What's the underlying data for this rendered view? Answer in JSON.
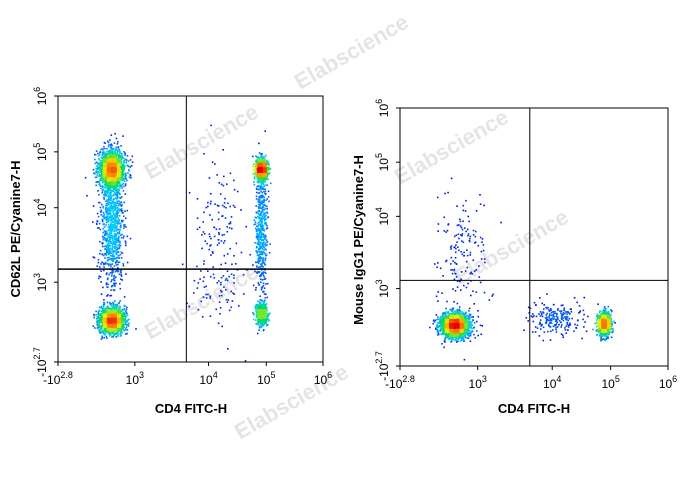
{
  "chart_data": [
    {
      "type": "scatter",
      "style": "density dot plot (pseudocolor)",
      "xlabel": "CD4 FITC-H",
      "ylabel": "CD62L PE/Cyanine7-H",
      "x_scale": "biexponential (log)",
      "y_scale": "biexponential (log)",
      "xlim": [
        -631,
        1000000
      ],
      "ylim": [
        -501,
        1000000
      ],
      "x_ticks": [
        {
          "base": "-10",
          "exp": "2.8"
        },
        {
          "base": "10",
          "exp": "3"
        },
        {
          "base": "10",
          "exp": "4"
        },
        {
          "base": "10",
          "exp": "5"
        },
        {
          "base": "10",
          "exp": "6"
        }
      ],
      "y_ticks": [
        {
          "base": "-10",
          "exp": "2.7"
        },
        {
          "base": "10",
          "exp": "3"
        },
        {
          "base": "10",
          "exp": "4"
        },
        {
          "base": "10",
          "exp": "5"
        },
        {
          "base": "10",
          "exp": "6"
        }
      ],
      "gate": {
        "x": 5000,
        "y": 1500
      },
      "populations": [
        {
          "x": 500,
          "y": 50000,
          "n": 1700,
          "sx": 0.11,
          "sy": 0.16
        },
        {
          "x": 500,
          "y": 6000,
          "n": 900,
          "sx": 0.1,
          "sy": 0.55
        },
        {
          "x": 500,
          "y": 300,
          "n": 1500,
          "sx": 0.11,
          "sy": 0.11
        },
        {
          "x": 80000,
          "y": 50000,
          "n": 900,
          "sx": 0.05,
          "sy": 0.09
        },
        {
          "x": 80000,
          "y": 5000,
          "n": 500,
          "sx": 0.05,
          "sy": 0.55
        },
        {
          "x": 80000,
          "y": 400,
          "n": 450,
          "sx": 0.05,
          "sy": 0.1
        },
        {
          "x": 15000,
          "y": 3000,
          "n": 180,
          "sx": 0.25,
          "sy": 0.7
        }
      ]
    },
    {
      "type": "scatter",
      "style": "density dot plot (pseudocolor)",
      "xlabel": "CD4 FITC-H",
      "ylabel": "Mouse IgG1 PE/Cyanine7-H",
      "x_scale": "biexponential (log)",
      "y_scale": "biexponential (log)",
      "xlim": [
        -631,
        1000000
      ],
      "ylim": [
        -501,
        1000000
      ],
      "x_ticks": [
        {
          "base": "-10",
          "exp": "2.8"
        },
        {
          "base": "10",
          "exp": "3"
        },
        {
          "base": "10",
          "exp": "4"
        },
        {
          "base": "10",
          "exp": "5"
        },
        {
          "base": "10",
          "exp": "6"
        }
      ],
      "y_ticks": [
        {
          "base": "-10",
          "exp": "2.7"
        },
        {
          "base": "10",
          "exp": "3"
        },
        {
          "base": "10",
          "exp": "4"
        },
        {
          "base": "10",
          "exp": "5"
        },
        {
          "base": "10",
          "exp": "6"
        }
      ],
      "gate": {
        "x": 5000,
        "y": 1300
      },
      "populations": [
        {
          "x": 500,
          "y": 300,
          "n": 2600,
          "sx": 0.12,
          "sy": 0.1
        },
        {
          "x": 75000,
          "y": 330,
          "n": 1300,
          "sx": 0.05,
          "sy": 0.1
        },
        {
          "x": 12000,
          "y": 450,
          "n": 220,
          "sx": 0.25,
          "sy": 0.15
        },
        {
          "x": 700,
          "y": 2500,
          "n": 160,
          "sx": 0.22,
          "sy": 0.55
        }
      ]
    }
  ],
  "watermark": "Elabscience"
}
